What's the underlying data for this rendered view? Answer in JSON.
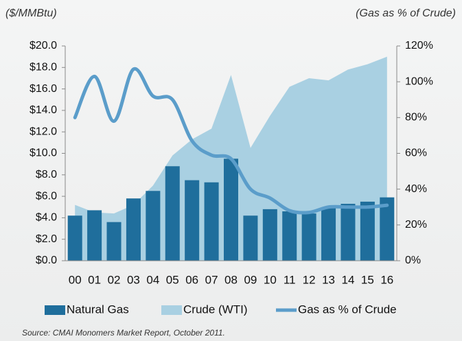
{
  "chart_data": {
    "type": "combo",
    "y_label": "($/MMBtu)",
    "y2_label": "(Gas as % of Crude)",
    "categories": [
      "00",
      "01",
      "02",
      "03",
      "04",
      "05",
      "06",
      "07",
      "08",
      "09",
      "10",
      "11",
      "12",
      "13",
      "14",
      "15",
      "16"
    ],
    "series": [
      {
        "name": "Natural Gas",
        "type": "bar",
        "color": "#1f6e9c",
        "values": [
          4.2,
          4.7,
          3.6,
          5.8,
          6.5,
          8.8,
          7.5,
          7.3,
          9.5,
          4.2,
          4.8,
          4.6,
          4.4,
          4.9,
          5.3,
          5.5,
          5.9
        ]
      },
      {
        "name": "Crude (WTI)",
        "type": "area",
        "color": "#a9d0e2",
        "values": [
          5.2,
          4.5,
          4.4,
          5.2,
          7.0,
          9.8,
          11.3,
          12.3,
          17.3,
          10.5,
          13.5,
          16.2,
          17.0,
          16.8,
          17.8,
          18.3,
          19.0
        ]
      },
      {
        "name": "Gas as % of Crude",
        "type": "line",
        "axis": "y2",
        "color": "#5b9dca",
        "values": [
          80,
          103,
          78,
          107,
          92,
          90,
          67,
          59,
          57,
          40,
          35,
          28,
          27,
          30,
          30,
          30,
          31
        ]
      }
    ],
    "ylim": [
      0,
      20
    ],
    "yticks": [
      {
        "value": 0,
        "label": "$0.0"
      },
      {
        "value": 2,
        "label": "$2.0"
      },
      {
        "value": 4,
        "label": "$4.0"
      },
      {
        "value": 6,
        "label": "$6.0"
      },
      {
        "value": 8,
        "label": "$8.0"
      },
      {
        "value": 10,
        "label": "$10.0"
      },
      {
        "value": 12,
        "label": "$12.0"
      },
      {
        "value": 14,
        "label": "$14.0"
      },
      {
        "value": 16,
        "label": "$16.0"
      },
      {
        "value": 18,
        "label": "$18.0"
      },
      {
        "value": 20,
        "label": "$20.0"
      }
    ],
    "y2lim": [
      0,
      120
    ],
    "y2ticks": [
      {
        "value": 0,
        "label": "0%"
      },
      {
        "value": 20,
        "label": "20%"
      },
      {
        "value": 40,
        "label": "40%"
      },
      {
        "value": 60,
        "label": "60%"
      },
      {
        "value": 80,
        "label": "80%"
      },
      {
        "value": 100,
        "label": "100%"
      },
      {
        "value": 120,
        "label": "120%"
      }
    ],
    "source": "Source:  CMAI Monomers Market Report, October 2011."
  }
}
